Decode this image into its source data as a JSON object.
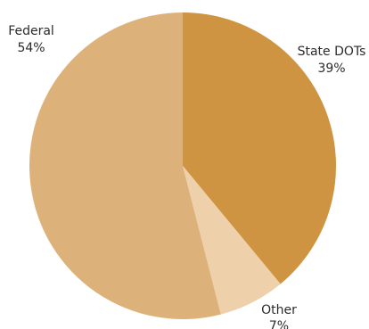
{
  "chart_data": {
    "type": "pie",
    "title": "",
    "start": "12 o'clock",
    "direction": "clockwise",
    "legend": "none",
    "slices": [
      {
        "name": "State DOTs",
        "value_label": "39%",
        "value": 39,
        "color": "#cf9442"
      },
      {
        "name": "Other",
        "value_label": "7%",
        "value": 7,
        "color": "#eed1ab"
      },
      {
        "name": "Federal",
        "value_label": "54%",
        "value": 54,
        "color": "#ddb27a"
      }
    ]
  }
}
